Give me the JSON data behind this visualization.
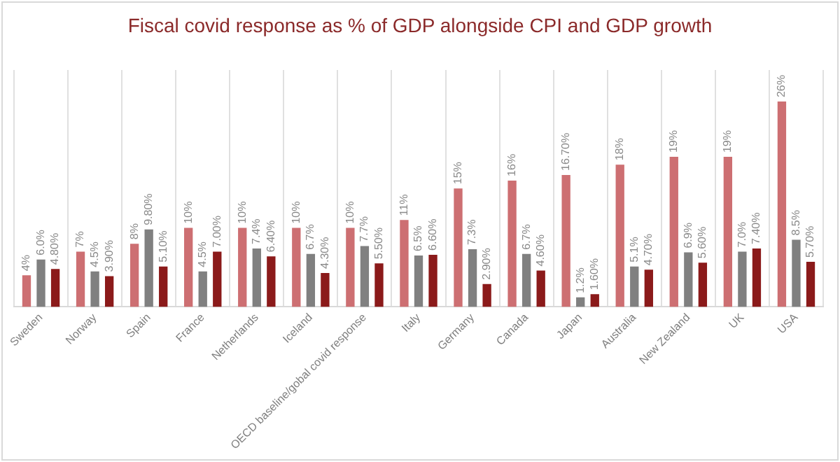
{
  "chart_data": {
    "type": "bar",
    "title": "Fiscal covid response as % of GDP alongside CPI and GDP growth",
    "categories": [
      "Sweden",
      "Norway",
      "Spain",
      "France",
      "Netherlands",
      "Iceland",
      "OECD baseline/gobal covid response",
      "Italy",
      "Germany",
      "Canada",
      "Japan",
      "Australia",
      "New Zealand",
      "UK",
      "USA"
    ],
    "tick_labels": "x",
    "grid": "x",
    "legend": false,
    "series": [
      {
        "color": "#cd6f72",
        "values": [
          4,
          7,
          8,
          10,
          10,
          10,
          10,
          11,
          15,
          16,
          16.7,
          18,
          19,
          19,
          26
        ],
        "value_labels": [
          "4%",
          "7%",
          "8%",
          "10%",
          "10%",
          "10%",
          "10%",
          "11%",
          "15%",
          "16%",
          "16.70%",
          "18%",
          "19%",
          "19%",
          "26%"
        ]
      },
      {
        "color": "#808080",
        "values": [
          6.0,
          4.5,
          9.8,
          4.5,
          7.4,
          6.7,
          7.7,
          6.5,
          7.3,
          6.7,
          1.2,
          5.1,
          6.9,
          7.0,
          8.5
        ],
        "value_labels": [
          "6.0%",
          "4.5%",
          "9.80%",
          "4.5%",
          "7.4%",
          "6.7%",
          "7.7%",
          "6.5%",
          "7.3%",
          "6.7%",
          "1.2%",
          "5.1%",
          "6.9%",
          "7.0%",
          "8.5%"
        ]
      },
      {
        "color": "#8b1a1a",
        "values": [
          4.8,
          3.9,
          5.1,
          7.0,
          6.4,
          4.3,
          5.5,
          6.6,
          2.9,
          4.6,
          1.6,
          4.7,
          5.6,
          7.4,
          5.7
        ],
        "value_labels": [
          "4.80%",
          "3.90%",
          "5.10%",
          "7.00%",
          "6.40%",
          "4.30%",
          "5.50%",
          "6.60%",
          "2.90%",
          "4.60%",
          "1.60%",
          "4.70%",
          "5.60%",
          "7.40%",
          "5.70%"
        ]
      }
    ]
  }
}
